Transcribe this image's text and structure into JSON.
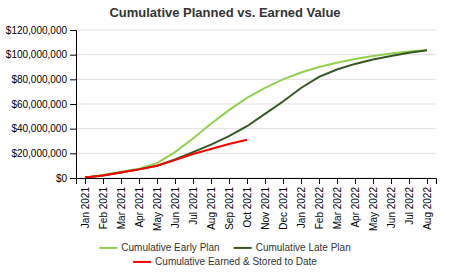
{
  "chart_data": {
    "type": "line",
    "title": "Cumulative Planned vs. Earned Value",
    "categories": [
      "Jan 2021",
      "Feb 2021",
      "Mar 2021",
      "Apr 2021",
      "May 2021",
      "Jun 2021",
      "Jul 2021",
      "Aug 2021",
      "Sep 2021",
      "Oct 2021",
      "Nov 2021",
      "Dec 2021",
      "Jan 2022",
      "Feb 2022",
      "Mar 2022",
      "Apr 2022",
      "May 2022",
      "Jun 2022",
      "Jul 2022",
      "Aug 2022"
    ],
    "series": [
      {
        "name": "Cumulative Early Plan",
        "color": "#92d050",
        "values": [
          500000,
          2500000,
          5000000,
          7500000,
          12000000,
          21000000,
          32000000,
          44000000,
          55000000,
          65000000,
          73000000,
          80000000,
          85500000,
          90000000,
          93500000,
          96500000,
          99000000,
          101000000,
          102500000,
          103500000
        ]
      },
      {
        "name": "Cumulative Late Plan",
        "color": "#375623",
        "values": [
          500000,
          2000000,
          4500000,
          7000000,
          10000000,
          15000000,
          21000000,
          27000000,
          34000000,
          42000000,
          52000000,
          62000000,
          73000000,
          82000000,
          88000000,
          92500000,
          96000000,
          99000000,
          101500000,
          103500000
        ]
      },
      {
        "name": "Cumulative Earned & Stored to Date",
        "color": "#ff0000",
        "values": [
          500000,
          2000000,
          4500000,
          7000000,
          10000000,
          14500000,
          19500000,
          23500000,
          27500000,
          31000000,
          null,
          null,
          null,
          null,
          null,
          null,
          null,
          null,
          null,
          null
        ]
      }
    ],
    "ylim": [
      0,
      120000000
    ],
    "yticks": [
      {
        "value": 0,
        "label": "$0"
      },
      {
        "value": 20000000,
        "label": "$20,000,000"
      },
      {
        "value": 40000000,
        "label": "$40,000,000"
      },
      {
        "value": 60000000,
        "label": "$60,000,000"
      },
      {
        "value": 80000000,
        "label": "$80,000,000"
      },
      {
        "value": 100000000,
        "label": "$100,000,000"
      },
      {
        "value": 120000000,
        "label": "$120,000,000"
      }
    ],
    "grid": true,
    "legend": "bottom"
  }
}
